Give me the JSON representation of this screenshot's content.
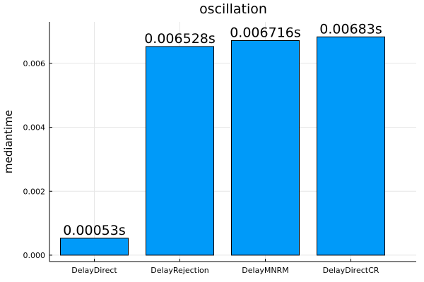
{
  "chart_data": {
    "type": "bar",
    "title": "oscillation",
    "xlabel": "",
    "ylabel": "mediantime",
    "categories": [
      "DelayDirect",
      "DelayRejection",
      "DelayMNRM",
      "DelayDirectCR"
    ],
    "values": [
      0.00053,
      0.006528,
      0.006716,
      0.00683
    ],
    "data_labels": [
      "0.00053s",
      "0.006528s",
      "0.006716s",
      "0.00683s"
    ],
    "yticks": [
      0.0,
      0.002,
      0.004,
      0.006
    ],
    "ytick_labels": [
      "0.000",
      "0.002",
      "0.004",
      "0.006"
    ],
    "ylim": [
      -0.0002,
      0.0073
    ],
    "grid": true,
    "legend": "none",
    "bar_color": "#009AF9",
    "bar_edge_color": "#000000"
  }
}
